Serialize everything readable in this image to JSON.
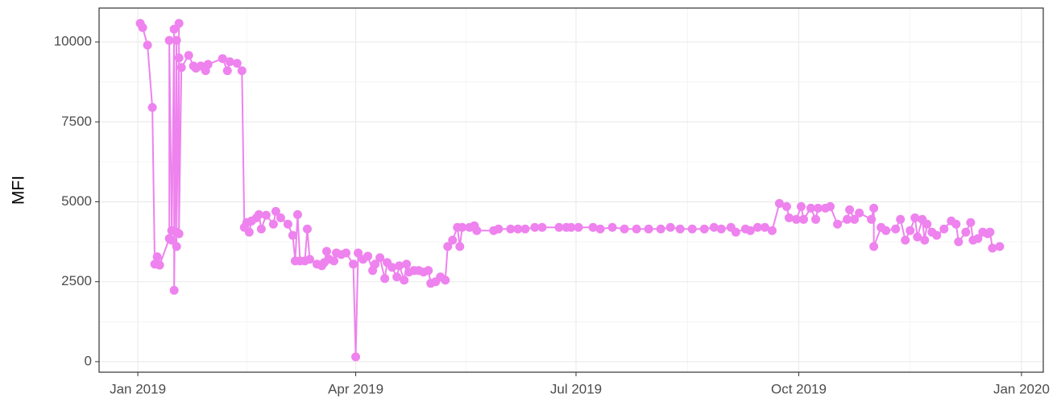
{
  "chart_data": {
    "type": "line",
    "y_label": "MFI",
    "color": "#ee82ee",
    "grid": true,
    "minor_grid": true,
    "xlim": [
      "2018-12-16",
      "2020-01-10"
    ],
    "xticks": [
      {
        "value": "2019-01-01",
        "label": "Jan 2019"
      },
      {
        "value": "2019-04-01",
        "label": "Apr 2019"
      },
      {
        "value": "2019-07-01",
        "label": "Jul 2019"
      },
      {
        "value": "2019-10-01",
        "label": "Oct 2019"
      },
      {
        "value": "2020-01-01",
        "label": "Jan 2020"
      }
    ],
    "ylim": [
      -330,
      11060
    ],
    "yticks": [
      0,
      2500,
      5000,
      7500,
      10000
    ],
    "x": [
      "2019-01-02",
      "2019-01-03",
      "2019-01-05",
      "2019-01-07",
      "2019-01-08",
      "2019-01-09",
      "2019-01-10",
      "2019-01-14",
      "2019-01-14",
      "2019-01-15",
      "2019-01-15",
      "2019-01-16",
      "2019-01-16",
      "2019-01-17",
      "2019-01-17",
      "2019-01-17",
      "2019-01-18",
      "2019-01-18",
      "2019-01-18",
      "2019-01-19",
      "2019-01-22",
      "2019-01-24",
      "2019-01-25",
      "2019-01-27",
      "2019-01-29",
      "2019-01-30",
      "2019-02-05",
      "2019-02-07",
      "2019-02-08",
      "2019-02-11",
      "2019-02-13",
      "2019-02-14",
      "2019-02-15",
      "2019-02-16",
      "2019-02-17",
      "2019-02-19",
      "2019-02-20",
      "2019-02-21",
      "2019-02-23",
      "2019-02-26",
      "2019-02-27",
      "2019-03-01",
      "2019-03-04",
      "2019-03-06",
      "2019-03-07",
      "2019-03-08",
      "2019-03-09",
      "2019-03-11",
      "2019-03-12",
      "2019-03-13",
      "2019-03-16",
      "2019-03-18",
      "2019-03-19",
      "2019-03-20",
      "2019-03-21",
      "2019-03-23",
      "2019-03-24",
      "2019-03-26",
      "2019-03-28",
      "2019-03-31",
      "2019-04-01",
      "2019-04-02",
      "2019-04-04",
      "2019-04-06",
      "2019-04-08",
      "2019-04-09",
      "2019-04-11",
      "2019-04-13",
      "2019-04-14",
      "2019-04-16",
      "2019-04-18",
      "2019-04-19",
      "2019-04-21",
      "2019-04-22",
      "2019-04-23",
      "2019-04-25",
      "2019-04-27",
      "2019-04-29",
      "2019-05-01",
      "2019-05-02",
      "2019-05-04",
      "2019-05-06",
      "2019-05-08",
      "2019-05-09",
      "2019-05-11",
      "2019-05-13",
      "2019-05-14",
      "2019-05-15",
      "2019-05-18",
      "2019-05-20",
      "2019-05-21",
      "2019-05-28",
      "2019-05-30",
      "2019-06-04",
      "2019-06-07",
      "2019-06-10",
      "2019-06-14",
      "2019-06-17",
      "2019-06-24",
      "2019-06-27",
      "2019-06-29",
      "2019-07-02",
      "2019-07-08",
      "2019-07-11",
      "2019-07-16",
      "2019-07-21",
      "2019-07-26",
      "2019-07-31",
      "2019-08-05",
      "2019-08-09",
      "2019-08-13",
      "2019-08-18",
      "2019-08-23",
      "2019-08-27",
      "2019-08-30",
      "2019-09-03",
      "2019-09-05",
      "2019-09-09",
      "2019-09-11",
      "2019-09-14",
      "2019-09-17",
      "2019-09-20",
      "2019-09-23",
      "2019-09-26",
      "2019-09-27",
      "2019-09-30",
      "2019-10-02",
      "2019-10-03",
      "2019-10-06",
      "2019-10-08",
      "2019-10-09",
      "2019-10-12",
      "2019-10-14",
      "2019-10-17",
      "2019-10-21",
      "2019-10-22",
      "2019-10-24",
      "2019-10-26",
      "2019-10-31",
      "2019-11-01",
      "2019-11-01",
      "2019-11-04",
      "2019-11-06",
      "2019-11-10",
      "2019-11-12",
      "2019-11-14",
      "2019-11-16",
      "2019-11-18",
      "2019-11-19",
      "2019-11-21",
      "2019-11-22",
      "2019-11-23",
      "2019-11-25",
      "2019-11-27",
      "2019-11-30",
      "2019-12-03",
      "2019-12-05",
      "2019-12-06",
      "2019-12-09",
      "2019-12-11",
      "2019-12-12",
      "2019-12-14",
      "2019-12-16",
      "2019-12-18",
      "2019-12-19",
      "2019-12-20",
      "2019-12-23"
    ],
    "values": [
      10580,
      10450,
      9900,
      7950,
      3050,
      3280,
      3020,
      3850,
      10050,
      4100,
      3800,
      10400,
      2230,
      10050,
      3600,
      4050,
      9500,
      10580,
      4000,
      9200,
      9580,
      9250,
      9180,
      9250,
      9100,
      9300,
      9480,
      9100,
      9380,
      9330,
      9100,
      4200,
      4350,
      4050,
      4400,
      4500,
      4600,
      4150,
      4580,
      4300,
      4700,
      4500,
      4300,
      3950,
      3150,
      4600,
      3150,
      3150,
      4150,
      3200,
      3050,
      3000,
      3100,
      3450,
      3200,
      3150,
      3400,
      3350,
      3400,
      3050,
      150,
      3400,
      3200,
      3300,
      2850,
      3050,
      3250,
      2600,
      3100,
      2950,
      2650,
      3000,
      2550,
      3050,
      2800,
      2850,
      2850,
      2800,
      2850,
      2450,
      2500,
      2650,
      2550,
      3600,
      3800,
      4200,
      3600,
      4200,
      4200,
      4250,
      4100,
      4100,
      4150,
      4150,
      4150,
      4150,
      4200,
      4200,
      4200,
      4200,
      4200,
      4200,
      4200,
      4150,
      4200,
      4150,
      4150,
      4150,
      4150,
      4200,
      4150,
      4150,
      4150,
      4200,
      4150,
      4200,
      4050,
      4150,
      4100,
      4200,
      4200,
      4100,
      4950,
      4850,
      4500,
      4450,
      4850,
      4450,
      4800,
      4450,
      4800,
      4800,
      4850,
      4300,
      4450,
      4750,
      4450,
      4650,
      4450,
      4800,
      3600,
      4200,
      4100,
      4150,
      4450,
      3800,
      4100,
      4500,
      3900,
      4450,
      3800,
      4300,
      4050,
      3950,
      4150,
      4400,
      4300,
      3750,
      4050,
      4350,
      3800,
      3850,
      4050,
      4000,
      4050,
      3550,
      3600
    ]
  }
}
